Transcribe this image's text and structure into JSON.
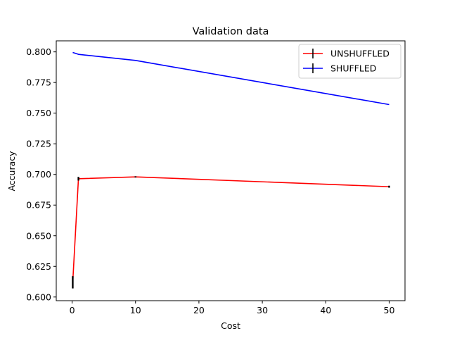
{
  "chart_data": {
    "type": "line",
    "title": "Validation data",
    "xlabel": "Cost",
    "ylabel": "Accuracy",
    "xlim": [
      -2.5,
      52.5
    ],
    "ylim": [
      0.597,
      0.809
    ],
    "xticks": [
      0,
      10,
      20,
      30,
      40,
      50
    ],
    "yticks": [
      0.6,
      0.625,
      0.65,
      0.675,
      0.7,
      0.725,
      0.75,
      0.775,
      0.8
    ],
    "ytick_labels": [
      "0.600",
      "0.625",
      "0.650",
      "0.675",
      "0.700",
      "0.725",
      "0.750",
      "0.775",
      "0.800"
    ],
    "grid": false,
    "legend_position": "top-right",
    "series": [
      {
        "name": "UNSHUFFLED",
        "color": "#ff0000",
        "errorbar_color": "#000000",
        "x": [
          0.1,
          1,
          10,
          50
        ],
        "y": [
          0.612,
          0.6965,
          0.698,
          0.69
        ],
        "yerr": [
          0.005,
          0.0015,
          0.0005,
          0.0008
        ]
      },
      {
        "name": "SHUFFLED",
        "color": "#0000ff",
        "errorbar_color": "#000000",
        "x": [
          0.1,
          1,
          10,
          50
        ],
        "y": [
          0.7995,
          0.798,
          0.793,
          0.757
        ],
        "yerr": [
          0,
          0,
          0,
          0
        ]
      }
    ]
  }
}
